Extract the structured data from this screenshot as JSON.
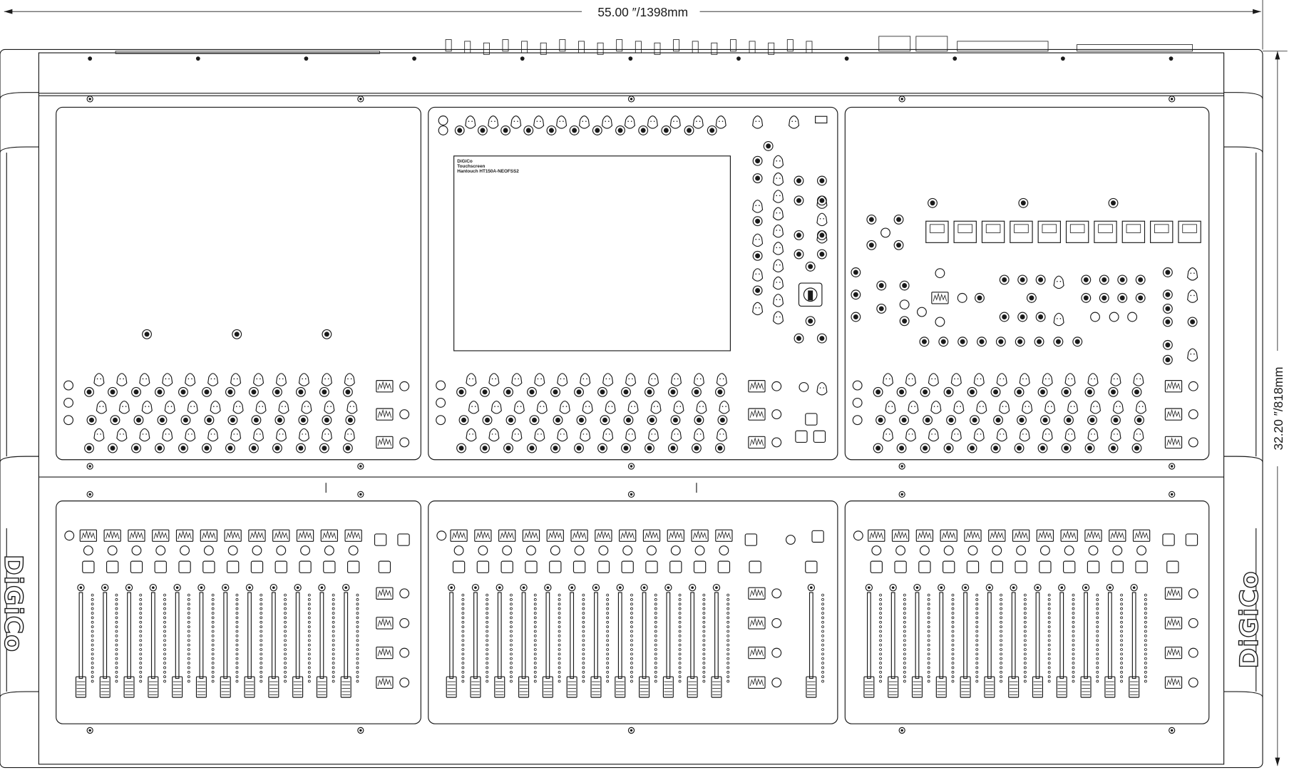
{
  "dimensions": {
    "width_label": "55.00 ″/1398mm",
    "depth_label": "32.20 ″/818mm"
  },
  "brand": "DiGiCo",
  "touchscreen": {
    "label_lines": [
      "DiGiCo",
      "Touchscreen",
      "Hantouch HT150A-NEOFSS2"
    ]
  },
  "colors": {
    "line": "#1a1a1a",
    "background": "#ffffff"
  }
}
